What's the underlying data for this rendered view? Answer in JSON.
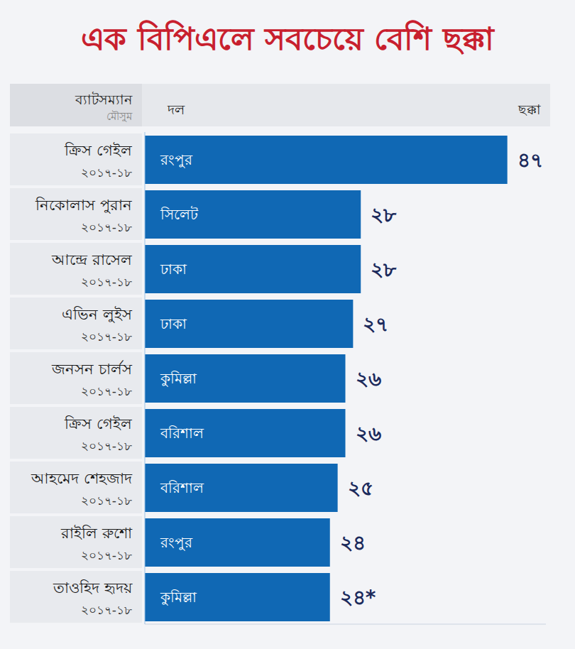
{
  "chart_data": {
    "type": "bar",
    "title": "এক বিপিএলে সবচেয়ে বেশি ছক্কা",
    "orientation": "horizontal",
    "header": {
      "batsman": "ব্যাটসম্যান",
      "season": "মৌসুম",
      "team": "দল",
      "sixes": "ছক্কা"
    },
    "categories": [
      "ক্রিস গেইল",
      "নিকোলাস পুরান",
      "আন্দ্রে রাসেল",
      "এভিন লুইস",
      "জনসন চার্লস",
      "ক্রিস গেইল",
      "আহমেদ শেহজাদ",
      "রাইলি রুশো",
      "তাওহিদ হৃদয়"
    ],
    "seasons": [
      "২০১৭-১৮",
      "২০১৭-১৮",
      "২০১৭-১৮",
      "২০১৭-১৮",
      "২০১৭-১৮",
      "২০১৭-১৮",
      "২০১৭-১৮",
      "২০১৭-১৮",
      "২০১৭-১৮"
    ],
    "teams": [
      "রংপুর",
      "সিলেট",
      "ঢাকা",
      "ঢাকা",
      "কুমিল্লা",
      "বরিশাল",
      "বরিশাল",
      "রংপুর",
      "কুমিল্লা"
    ],
    "values": [
      47,
      28,
      28,
      27,
      26,
      26,
      25,
      24,
      24
    ],
    "value_labels": [
      "৪৭",
      "২৮",
      "২৮",
      "২৭",
      "২৬",
      "২৬",
      "২৫",
      "২৪",
      "২৪*"
    ],
    "color": "#1068b4",
    "xlim": [
      0,
      52
    ],
    "data_labels": true,
    "tick_labels": "y",
    "grid": false
  }
}
